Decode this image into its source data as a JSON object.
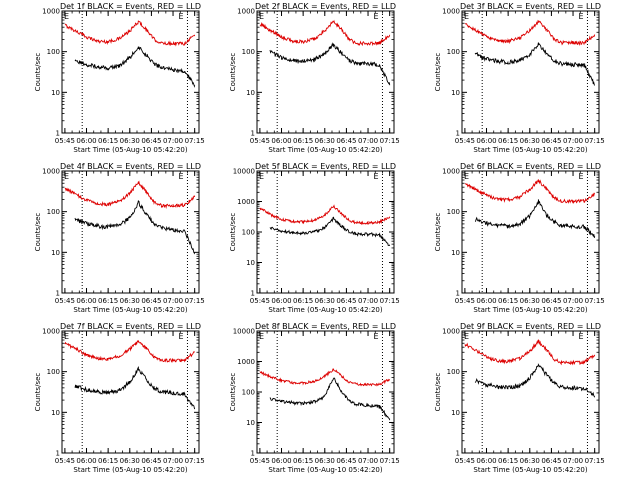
{
  "x_ticks": [
    "05:45",
    "06:00",
    "06:15",
    "06:30",
    "06:45",
    "07:00",
    "07:15"
  ],
  "x_label": "Start Time (05-Aug-10 05:42:20)",
  "y_label": "Counts/sec",
  "marker_left": "E",
  "marker_right": "E",
  "colors": {
    "events": "#000000",
    "lld": "#dd0000"
  },
  "chart_data": [
    {
      "type": "line",
      "title": "Det 1f BLACK = Events, RED = LLD",
      "x": [
        "05:45",
        "05:52",
        "06:00",
        "06:08",
        "06:15",
        "06:23",
        "06:30",
        "06:36",
        "06:42",
        "06:47",
        "06:52",
        "07:00",
        "07:08",
        "07:15"
      ],
      "series": [
        {
          "name": "RED = LLD",
          "values": [
            450,
            330,
            230,
            180,
            175,
            210,
            320,
            550,
            330,
            200,
            160,
            160,
            160,
            260
          ]
        },
        {
          "name": "BLACK = Events",
          "values": [
            null,
            60,
            48,
            42,
            40,
            45,
            70,
            130,
            80,
            50,
            40,
            36,
            33,
            15
          ]
        }
      ],
      "ylim": [
        1,
        1000
      ],
      "yscale": "log",
      "vlines": [
        "05:57",
        "07:10"
      ]
    },
    {
      "type": "line",
      "title": "Det 2f BLACK = Events, RED = LLD",
      "x": [
        "05:45",
        "05:52",
        "06:00",
        "06:08",
        "06:15",
        "06:23",
        "06:30",
        "06:36",
        "06:42",
        "06:47",
        "06:52",
        "07:00",
        "07:08",
        "07:15"
      ],
      "series": [
        {
          "name": "RED = LLD",
          "values": [
            480,
            340,
            230,
            180,
            175,
            210,
            330,
            560,
            340,
            200,
            160,
            160,
            165,
            260
          ]
        },
        {
          "name": "BLACK = Events",
          "values": [
            null,
            100,
            70,
            60,
            58,
            65,
            90,
            150,
            90,
            60,
            50,
            50,
            48,
            15
          ]
        }
      ],
      "ylim": [
        1,
        1000
      ],
      "yscale": "log",
      "vlines": [
        "05:57",
        "07:10"
      ]
    },
    {
      "type": "line",
      "title": "Det 3f BLACK = Events, RED = LLD",
      "x": [
        "05:45",
        "05:52",
        "06:00",
        "06:08",
        "06:15",
        "06:23",
        "06:30",
        "06:36",
        "06:42",
        "06:47",
        "06:52",
        "07:00",
        "07:08",
        "07:15"
      ],
      "series": [
        {
          "name": "RED = LLD",
          "values": [
            470,
            340,
            235,
            185,
            180,
            215,
            330,
            560,
            340,
            205,
            165,
            165,
            165,
            265
          ]
        },
        {
          "name": "BLACK = Events",
          "values": [
            null,
            90,
            65,
            58,
            55,
            62,
            85,
            150,
            90,
            60,
            50,
            48,
            46,
            15
          ]
        }
      ],
      "ylim": [
        1,
        1000
      ],
      "yscale": "log",
      "vlines": [
        "05:57",
        "07:10"
      ]
    },
    {
      "type": "line",
      "title": "Det 4f BLACK = Events, RED = LLD",
      "x": [
        "05:45",
        "05:52",
        "06:00",
        "06:08",
        "06:15",
        "06:23",
        "06:30",
        "06:36",
        "06:42",
        "06:47",
        "06:52",
        "07:00",
        "07:08",
        "07:15"
      ],
      "series": [
        {
          "name": "RED = LLD",
          "values": [
            380,
            270,
            190,
            155,
            150,
            180,
            280,
            520,
            290,
            170,
            140,
            140,
            145,
            230
          ]
        },
        {
          "name": "BLACK = Events",
          "values": [
            null,
            65,
            50,
            44,
            42,
            48,
            70,
            170,
            80,
            50,
            40,
            36,
            32,
            10
          ]
        }
      ],
      "ylim": [
        1,
        1000
      ],
      "yscale": "log",
      "vlines": [
        "05:57",
        "07:10"
      ]
    },
    {
      "type": "line",
      "title": "Det 5f BLACK = Events, RED = LLD",
      "x": [
        "05:45",
        "05:52",
        "06:00",
        "06:08",
        "06:15",
        "06:23",
        "06:30",
        "06:36",
        "06:42",
        "06:47",
        "06:52",
        "07:00",
        "07:08",
        "07:15"
      ],
      "series": [
        {
          "name": "RED = LLD",
          "values": [
            620,
            380,
            260,
            220,
            215,
            245,
            360,
            700,
            380,
            240,
            200,
            200,
            210,
            320
          ]
        },
        {
          "name": "BLACK = Events",
          "values": [
            null,
            140,
            110,
            95,
            90,
            100,
            140,
            280,
            150,
            100,
            85,
            85,
            80,
            35
          ]
        }
      ],
      "ylim": [
        1,
        10000
      ],
      "yscale": "log",
      "vlines": [
        "05:57",
        "07:10"
      ]
    },
    {
      "type": "line",
      "title": "Det 6f BLACK = Events, RED = LLD",
      "x": [
        "05:45",
        "05:52",
        "06:00",
        "06:08",
        "06:15",
        "06:23",
        "06:30",
        "06:36",
        "06:42",
        "06:47",
        "06:52",
        "07:00",
        "07:08",
        "07:15"
      ],
      "series": [
        {
          "name": "RED = LLD",
          "values": [
            490,
            360,
            250,
            200,
            195,
            230,
            350,
            580,
            350,
            220,
            180,
            180,
            185,
            280
          ]
        },
        {
          "name": "BLACK = Events",
          "values": [
            null,
            65,
            52,
            46,
            44,
            50,
            80,
            180,
            80,
            55,
            46,
            44,
            42,
            25
          ]
        }
      ],
      "ylim": [
        1,
        1000
      ],
      "yscale": "log",
      "vlines": [
        "05:57",
        "07:10"
      ]
    },
    {
      "type": "line",
      "title": "Det 7f BLACK = Events, RED = LLD",
      "x": [
        "05:45",
        "05:52",
        "06:00",
        "06:08",
        "06:15",
        "06:23",
        "06:30",
        "06:36",
        "06:42",
        "06:47",
        "06:52",
        "07:00",
        "07:08",
        "07:15"
      ],
      "series": [
        {
          "name": "RED = LLD",
          "values": [
            490,
            370,
            260,
            210,
            205,
            240,
            360,
            570,
            360,
            230,
            190,
            190,
            195,
            300
          ]
        },
        {
          "name": "BLACK = Events",
          "values": [
            null,
            45,
            36,
            32,
            30,
            35,
            55,
            120,
            60,
            40,
            32,
            30,
            28,
            12
          ]
        }
      ],
      "ylim": [
        1,
        1000
      ],
      "yscale": "log",
      "vlines": [
        "05:57",
        "07:10"
      ]
    },
    {
      "type": "line",
      "title": "Det 8f BLACK = Events, RED = LLD",
      "x": [
        "05:45",
        "05:52",
        "06:00",
        "06:08",
        "06:15",
        "06:23",
        "06:30",
        "06:36",
        "06:42",
        "06:47",
        "06:52",
        "07:00",
        "07:08",
        "07:15"
      ],
      "series": [
        {
          "name": "RED = LLD",
          "values": [
            450,
            320,
            240,
            200,
            195,
            225,
            330,
            560,
            320,
            210,
            180,
            175,
            180,
            260
          ]
        },
        {
          "name": "BLACK = Events",
          "values": [
            null,
            60,
            50,
            44,
            42,
            48,
            70,
            300,
            100,
            50,
            40,
            36,
            34,
            12
          ]
        }
      ],
      "ylim": [
        1,
        10000
      ],
      "yscale": "log",
      "vlines": [
        "05:57",
        "07:10"
      ]
    },
    {
      "type": "line",
      "title": "Det 9f BLACK = Events, RED = LLD",
      "x": [
        "05:45",
        "05:52",
        "06:00",
        "06:08",
        "06:15",
        "06:23",
        "06:30",
        "06:36",
        "06:42",
        "06:47",
        "06:52",
        "07:00",
        "07:08",
        "07:15"
      ],
      "series": [
        {
          "name": "RED = LLD",
          "values": [
            480,
            340,
            230,
            180,
            175,
            210,
            320,
            560,
            330,
            200,
            165,
            165,
            170,
            260
          ]
        },
        {
          "name": "BLACK = Events",
          "values": [
            null,
            60,
            48,
            42,
            40,
            45,
            70,
            150,
            80,
            50,
            42,
            40,
            38,
            25
          ]
        }
      ],
      "ylim": [
        1,
        1000
      ],
      "yscale": "log",
      "vlines": [
        "05:57",
        "07:10"
      ]
    }
  ]
}
